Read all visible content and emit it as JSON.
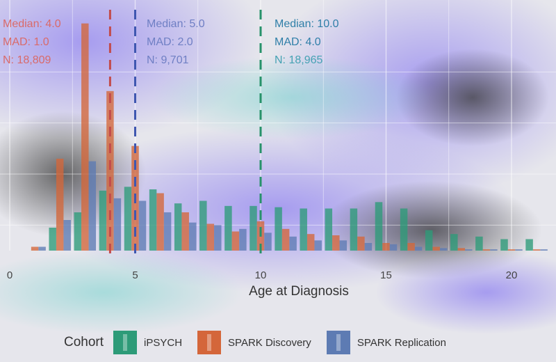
{
  "chart_data": {
    "type": "bar",
    "xlabel": "Age at Diagnosis",
    "xlim": [
      -0.5,
      21.5
    ],
    "xticks": [
      0,
      5,
      10,
      15,
      20
    ],
    "ylim": [
      0,
      0.18
    ],
    "grid": true,
    "legend": {
      "title": "Cohort",
      "placement": "bottom"
    },
    "series": [
      {
        "name": "iPSYCH",
        "color": "#2d9b78",
        "x": [
          2,
          3,
          4,
          5,
          6,
          7,
          8,
          9,
          10,
          11,
          12,
          13,
          14,
          15,
          16,
          17,
          18,
          19,
          20,
          21
        ],
        "values": [
          0.018,
          0.03,
          0.047,
          0.05,
          0.048,
          0.037,
          0.039,
          0.035,
          0.035,
          0.034,
          0.033,
          0.033,
          0.033,
          0.038,
          0.033,
          0.016,
          0.013,
          0.011,
          0.009,
          0.009
        ]
      },
      {
        "name": "SPARK Discovery",
        "color": "#d4663a",
        "x": [
          1,
          2,
          3,
          4,
          5,
          6,
          7,
          8,
          9,
          10,
          11,
          12,
          13,
          14,
          15,
          16,
          17,
          18,
          19,
          20,
          21
        ],
        "values": [
          0.003,
          0.072,
          0.178,
          0.125,
          0.082,
          0.045,
          0.03,
          0.021,
          0.015,
          0.023,
          0.017,
          0.013,
          0.012,
          0.011,
          0.006,
          0.006,
          0.003,
          0.002,
          0.001,
          0.001,
          0.001
        ]
      },
      {
        "name": "SPARK Replication",
        "color": "#5d7bb3",
        "x": [
          1,
          2,
          3,
          4,
          5,
          6,
          7,
          8,
          9,
          10,
          11,
          12,
          13,
          14,
          15,
          16,
          17,
          18,
          19,
          20,
          21
        ],
        "values": [
          0.003,
          0.024,
          0.07,
          0.041,
          0.039,
          0.03,
          0.022,
          0.02,
          0.017,
          0.014,
          0.011,
          0.008,
          0.008,
          0.006,
          0.005,
          0.003,
          0.002,
          0.001,
          0.001,
          0.001,
          0.001
        ]
      }
    ],
    "medians": [
      {
        "series": "iPSYCH",
        "x": 4.0,
        "color": "#c24b4b"
      },
      {
        "series": "SPARK Discovery",
        "x": 5.0,
        "color": "#3f57b0"
      },
      {
        "series": "SPARK Replication",
        "x": 10.0,
        "color": "#27926a"
      }
    ],
    "annotations": [
      {
        "median": "Median: 4.0",
        "mad": "MAD: 1.0",
        "n": "N: 18,809"
      },
      {
        "median": "Median: 5.0",
        "mad": "MAD: 2.0",
        "n": "N: 9,701"
      },
      {
        "median": "Median: 10.0",
        "mad": "MAD: 4.0",
        "n": "N: 18,965"
      }
    ]
  }
}
